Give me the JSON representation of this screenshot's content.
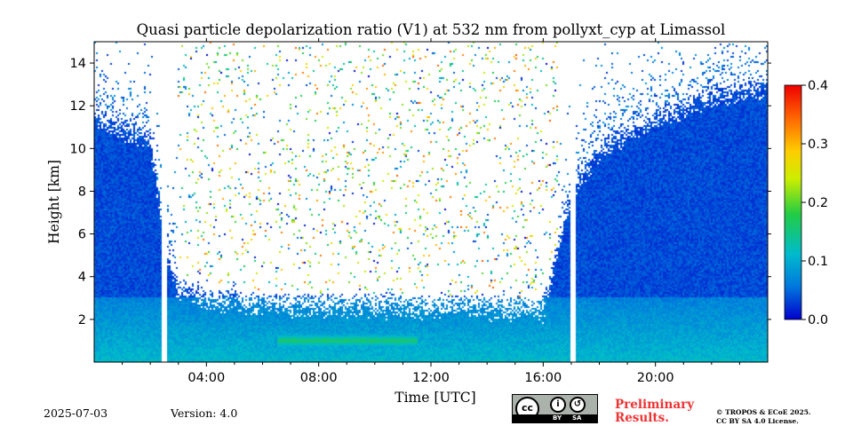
{
  "chart_data": {
    "type": "heatmap",
    "title": "Quasi particle depolarization ratio (V1) at 532 nm from pollyxt_cyp at Limassol",
    "xlabel": "Time [UTC]",
    "ylabel": "Height [km]",
    "x_ticks": [
      "04:00",
      "08:00",
      "12:00",
      "16:00",
      "20:00"
    ],
    "x_tick_hours": [
      4,
      8,
      12,
      16,
      20
    ],
    "xlim_hours": [
      0,
      24
    ],
    "y_ticks": [
      "2",
      "4",
      "6",
      "8",
      "10",
      "12",
      "14"
    ],
    "y_tick_values": [
      2,
      4,
      6,
      8,
      10,
      12,
      14
    ],
    "ylim_km": [
      0,
      15
    ],
    "colorbar": {
      "ticks": [
        "0.0",
        "0.1",
        "0.2",
        "0.3",
        "0.4"
      ],
      "tick_values": [
        0.0,
        0.1,
        0.2,
        0.3,
        0.4
      ],
      "range": [
        0.0,
        0.4
      ],
      "colors": [
        "#0000cc",
        "#0077dd",
        "#00bbcc",
        "#22cc44",
        "#ccee00",
        "#ffcc00",
        "#ff6600",
        "#ee0000"
      ]
    },
    "data_gaps_hours": [
      [
        2.4,
        2.6
      ],
      [
        16.95,
        17.15
      ]
    ],
    "signal_top_km": [
      [
        0,
        12.0
      ],
      [
        1,
        11.5
      ],
      [
        2,
        11.0
      ],
      [
        2.5,
        6.0
      ],
      [
        3,
        4.0
      ],
      [
        4,
        3.5
      ],
      [
        6,
        3.3
      ],
      [
        8,
        3.2
      ],
      [
        10,
        3.2
      ],
      [
        12,
        3.1
      ],
      [
        14,
        3.1
      ],
      [
        16,
        3.0
      ],
      [
        17,
        8.5
      ],
      [
        18,
        10.5
      ],
      [
        20,
        12.0
      ],
      [
        22,
        13.0
      ],
      [
        24,
        13.5
      ]
    ],
    "layers": [
      {
        "label": "elevated depolarization",
        "t_start_hours": 6.5,
        "t_end_hours": 11.5,
        "z_center_km": 1.0,
        "value": 0.15
      }
    ]
  },
  "footer": {
    "date": "2025-07-03",
    "version": "Version: 4.0",
    "preliminary_line1": "Preliminary",
    "preliminary_line2": "Results.",
    "copyright_line1": "© TROPOS & ECoE 2025.",
    "copyright_line2": "CC BY SA 4.0 License.",
    "cc_logo": "cc",
    "cc_by": "BY",
    "cc_sa": "SA"
  }
}
